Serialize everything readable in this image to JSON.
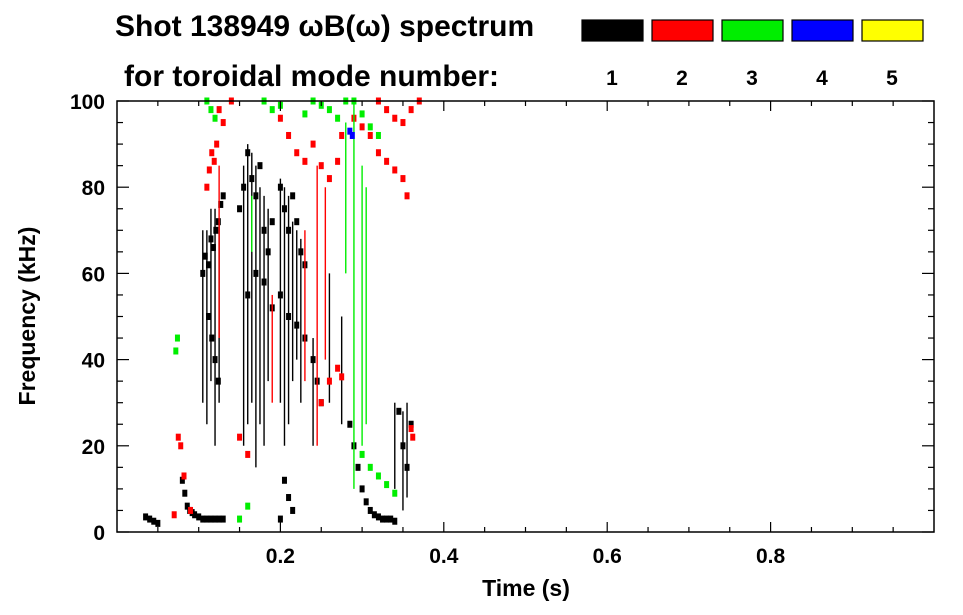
{
  "chart_data": {
    "type": "scatter",
    "title": "Shot 138949 ωB(ω) spectrum",
    "subtitle": "for toroidal mode number:",
    "xlabel": "Time (s)",
    "ylabel": "Frequency (kHz)",
    "xlim": [
      0.0,
      1.0
    ],
    "ylim": [
      0,
      100
    ],
    "x_ticks": [
      0.2,
      0.4,
      0.6,
      0.8
    ],
    "x_tick_labels": [
      "0.2",
      "0.4",
      "0.6",
      "0.8"
    ],
    "y_ticks": [
      0,
      20,
      40,
      60,
      80,
      100
    ],
    "y_tick_labels": [
      "0",
      "20",
      "40",
      "60",
      "80",
      "100"
    ],
    "grid": false,
    "legend_position": "top-right",
    "legend": [
      {
        "label": "1",
        "color": "#000000"
      },
      {
        "label": "2",
        "color": "#ff0000"
      },
      {
        "label": "3",
        "color": "#00ee00"
      },
      {
        "label": "4",
        "color": "#0000ff"
      },
      {
        "label": "5",
        "color": "#ffff00"
      }
    ],
    "series": [
      {
        "mode": "1",
        "color": "#000000",
        "points": [
          [
            0.035,
            3.5
          ],
          [
            0.04,
            3.0
          ],
          [
            0.045,
            2.5
          ],
          [
            0.05,
            2.0
          ],
          [
            0.08,
            12.0
          ],
          [
            0.083,
            9.0
          ],
          [
            0.086,
            6.0
          ],
          [
            0.089,
            5.0
          ],
          [
            0.092,
            4.5
          ],
          [
            0.095,
            4.0
          ],
          [
            0.1,
            3.5
          ],
          [
            0.105,
            3.0
          ],
          [
            0.11,
            3.0
          ],
          [
            0.115,
            3.0
          ],
          [
            0.12,
            3.0
          ],
          [
            0.125,
            3.0
          ],
          [
            0.13,
            3.0
          ],
          [
            0.105,
            60.0
          ],
          [
            0.108,
            64.0
          ],
          [
            0.112,
            62.0
          ],
          [
            0.115,
            68.0
          ],
          [
            0.118,
            66.0
          ],
          [
            0.121,
            70.0
          ],
          [
            0.124,
            72.0
          ],
          [
            0.127,
            76.0
          ],
          [
            0.13,
            78.0
          ],
          [
            0.112,
            50.0
          ],
          [
            0.116,
            45.0
          ],
          [
            0.12,
            40.0
          ],
          [
            0.124,
            35.0
          ],
          [
            0.15,
            75.0
          ],
          [
            0.155,
            80.0
          ],
          [
            0.16,
            88.0
          ],
          [
            0.165,
            82.0
          ],
          [
            0.17,
            78.0
          ],
          [
            0.175,
            85.0
          ],
          [
            0.18,
            70.0
          ],
          [
            0.185,
            65.0
          ],
          [
            0.19,
            72.0
          ],
          [
            0.16,
            55.0
          ],
          [
            0.17,
            60.0
          ],
          [
            0.18,
            58.0
          ],
          [
            0.19,
            52.0
          ],
          [
            0.2,
            80.0
          ],
          [
            0.205,
            75.0
          ],
          [
            0.21,
            70.0
          ],
          [
            0.215,
            78.0
          ],
          [
            0.22,
            72.0
          ],
          [
            0.225,
            65.0
          ],
          [
            0.23,
            62.0
          ],
          [
            0.2,
            55.0
          ],
          [
            0.21,
            50.0
          ],
          [
            0.22,
            48.0
          ],
          [
            0.23,
            45.0
          ],
          [
            0.205,
            12.0
          ],
          [
            0.21,
            8.0
          ],
          [
            0.215,
            5.0
          ],
          [
            0.2,
            3.0
          ],
          [
            0.24,
            40.0
          ],
          [
            0.245,
            35.0
          ],
          [
            0.25,
            30.0
          ],
          [
            0.285,
            25.0
          ],
          [
            0.29,
            20.0
          ],
          [
            0.295,
            15.0
          ],
          [
            0.3,
            10.0
          ],
          [
            0.305,
            7.0
          ],
          [
            0.31,
            5.0
          ],
          [
            0.315,
            4.0
          ],
          [
            0.32,
            3.5
          ],
          [
            0.325,
            3.0
          ],
          [
            0.33,
            3.0
          ],
          [
            0.335,
            3.0
          ],
          [
            0.34,
            2.5
          ],
          [
            0.345,
            28.0
          ],
          [
            0.35,
            20.0
          ],
          [
            0.355,
            15.0
          ],
          [
            0.36,
            25.0
          ]
        ],
        "vertical_segments": [
          [
            0.105,
            30,
            70
          ],
          [
            0.11,
            25,
            70
          ],
          [
            0.115,
            35,
            75
          ],
          [
            0.12,
            20,
            75
          ],
          [
            0.125,
            30,
            72
          ],
          [
            0.155,
            20,
            85
          ],
          [
            0.16,
            25,
            90
          ],
          [
            0.165,
            30,
            88
          ],
          [
            0.17,
            15,
            85
          ],
          [
            0.175,
            25,
            80
          ],
          [
            0.18,
            20,
            78
          ],
          [
            0.185,
            35,
            75
          ],
          [
            0.2,
            30,
            82
          ],
          [
            0.205,
            20,
            80
          ],
          [
            0.21,
            25,
            78
          ],
          [
            0.215,
            35,
            72
          ],
          [
            0.22,
            40,
            70
          ],
          [
            0.225,
            30,
            68
          ],
          [
            0.24,
            20,
            45
          ],
          [
            0.26,
            30,
            60
          ],
          [
            0.275,
            25,
            50
          ],
          [
            0.34,
            10,
            30
          ],
          [
            0.35,
            5,
            28
          ],
          [
            0.355,
            8,
            30
          ]
        ]
      },
      {
        "mode": "2",
        "color": "#ff0000",
        "points": [
          [
            0.07,
            4.0
          ],
          [
            0.075,
            22.0
          ],
          [
            0.078,
            20.0
          ],
          [
            0.082,
            13.0
          ],
          [
            0.09,
            5.0
          ],
          [
            0.11,
            80.0
          ],
          [
            0.113,
            84.0
          ],
          [
            0.116,
            88.0
          ],
          [
            0.119,
            86.0
          ],
          [
            0.122,
            90.0
          ],
          [
            0.125,
            98.0
          ],
          [
            0.13,
            95.0
          ],
          [
            0.14,
            100.0
          ],
          [
            0.2,
            96.0
          ],
          [
            0.21,
            92.0
          ],
          [
            0.22,
            88.0
          ],
          [
            0.23,
            86.0
          ],
          [
            0.24,
            90.0
          ],
          [
            0.25,
            85.0
          ],
          [
            0.26,
            82.0
          ],
          [
            0.27,
            86.0
          ],
          [
            0.275,
            92.0
          ],
          [
            0.29,
            96.0
          ],
          [
            0.3,
            94.0
          ],
          [
            0.31,
            92.0
          ],
          [
            0.32,
            88.0
          ],
          [
            0.33,
            86.0
          ],
          [
            0.34,
            84.0
          ],
          [
            0.35,
            82.0
          ],
          [
            0.355,
            78.0
          ],
          [
            0.32,
            100.0
          ],
          [
            0.33,
            98.0
          ],
          [
            0.34,
            96.0
          ],
          [
            0.35,
            95.0
          ],
          [
            0.36,
            98.0
          ],
          [
            0.37,
            100.0
          ],
          [
            0.25,
            30.0
          ],
          [
            0.26,
            35.0
          ],
          [
            0.27,
            38.0
          ],
          [
            0.275,
            36.0
          ],
          [
            0.36,
            24.0
          ],
          [
            0.362,
            22.0
          ],
          [
            0.15,
            22.0
          ],
          [
            0.16,
            18.0
          ]
        ],
        "vertical_segments": [
          [
            0.125,
            45,
            85
          ],
          [
            0.19,
            30,
            55
          ],
          [
            0.23,
            35,
            70
          ],
          [
            0.245,
            20,
            85
          ],
          [
            0.255,
            40,
            80
          ]
        ]
      },
      {
        "mode": "3",
        "color": "#00ee00",
        "points": [
          [
            0.072,
            42.0
          ],
          [
            0.074,
            45.0
          ],
          [
            0.11,
            100.0
          ],
          [
            0.115,
            98.0
          ],
          [
            0.12,
            96.0
          ],
          [
            0.18,
            100.0
          ],
          [
            0.19,
            98.0
          ],
          [
            0.2,
            99.0
          ],
          [
            0.23,
            97.0
          ],
          [
            0.24,
            100.0
          ],
          [
            0.25,
            99.0
          ],
          [
            0.26,
            98.0
          ],
          [
            0.27,
            96.0
          ],
          [
            0.28,
            100.0
          ],
          [
            0.29,
            100.0
          ],
          [
            0.3,
            97.0
          ],
          [
            0.31,
            94.0
          ],
          [
            0.32,
            92.0
          ],
          [
            0.3,
            18.0
          ],
          [
            0.31,
            15.0
          ],
          [
            0.32,
            13.0
          ],
          [
            0.33,
            11.0
          ],
          [
            0.34,
            9.0
          ],
          [
            0.15,
            3.0
          ],
          [
            0.16,
            6.0
          ]
        ],
        "vertical_segments": [
          [
            0.165,
            65,
            78
          ],
          [
            0.28,
            60,
            95
          ],
          [
            0.29,
            10,
            100
          ],
          [
            0.3,
            20,
            85
          ],
          [
            0.305,
            25,
            80
          ]
        ]
      },
      {
        "mode": "4",
        "color": "#0000ff",
        "points": [
          [
            0.285,
            93.0
          ],
          [
            0.288,
            92.0
          ]
        ],
        "vertical_segments": []
      },
      {
        "mode": "5",
        "color": "#ffff00",
        "points": [],
        "vertical_segments": []
      }
    ]
  }
}
